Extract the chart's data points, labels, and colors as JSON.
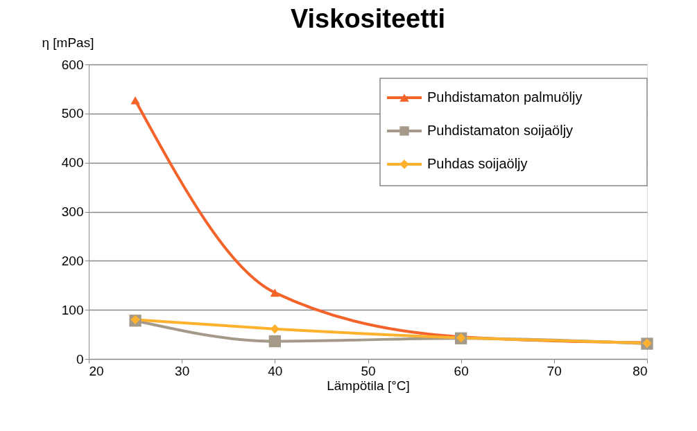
{
  "chart_data": {
    "type": "line",
    "title": "Viskositeetti",
    "xlabel": "Lämpötila [°C]",
    "ylabel": "η [mPas]",
    "x": [
      25,
      40,
      60,
      80
    ],
    "series": [
      {
        "name": "Puhdistamaton palmuöljy",
        "color": "#f4632a",
        "marker": "triangle",
        "values": [
          527,
          135,
          45,
          33
        ]
      },
      {
        "name": "Puhdistamaton soijaöljy",
        "color": "#a59a89",
        "marker": "square",
        "values": [
          78,
          36,
          42,
          31
        ]
      },
      {
        "name": "Puhdas soijaöljy",
        "color": "#fdb12d",
        "marker": "diamond",
        "values": [
          80,
          61,
          43,
          32
        ]
      }
    ],
    "xlim": [
      20,
      80
    ],
    "xticks": [
      20,
      30,
      40,
      50,
      60,
      70,
      80
    ],
    "ylim": [
      0,
      600
    ],
    "yticks": [
      0,
      100,
      200,
      300,
      400,
      500,
      600
    ],
    "grid": "y",
    "legend": "top right",
    "line_style": "solid"
  }
}
